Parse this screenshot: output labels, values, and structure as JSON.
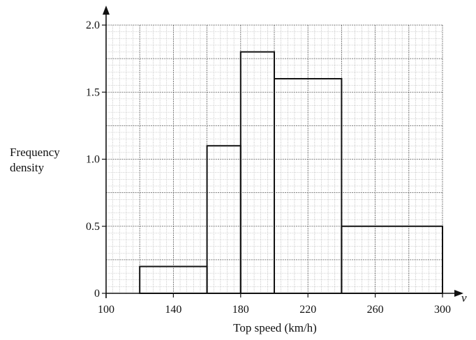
{
  "chart_data": {
    "type": "bar",
    "subtype": "histogram",
    "xlabel": "Top speed (km/h)",
    "ylabel_lines": [
      "Frequency",
      "density"
    ],
    "x_variable": "v",
    "xlim": [
      100,
      300
    ],
    "ylim": [
      0,
      2.0
    ],
    "x_ticks": [
      100,
      140,
      180,
      220,
      260,
      300
    ],
    "y_ticks": [
      0,
      0.5,
      1.0,
      1.5,
      2.0
    ],
    "x_tick_labels": [
      "100",
      "140",
      "180",
      "220",
      "260",
      "300"
    ],
    "y_tick_labels": [
      "0",
      "0.5",
      "1.0",
      "1.5",
      "2.0"
    ],
    "grid": "fine graph paper, minor 4 km/h × 0.05, major 20 km/h × 0.25",
    "bins": [
      {
        "start": 120,
        "end": 160,
        "density": 0.2
      },
      {
        "start": 160,
        "end": 180,
        "density": 1.1
      },
      {
        "start": 180,
        "end": 200,
        "density": 1.8
      },
      {
        "start": 200,
        "end": 240,
        "density": 1.6
      },
      {
        "start": 240,
        "end": 300,
        "density": 0.5
      }
    ]
  }
}
